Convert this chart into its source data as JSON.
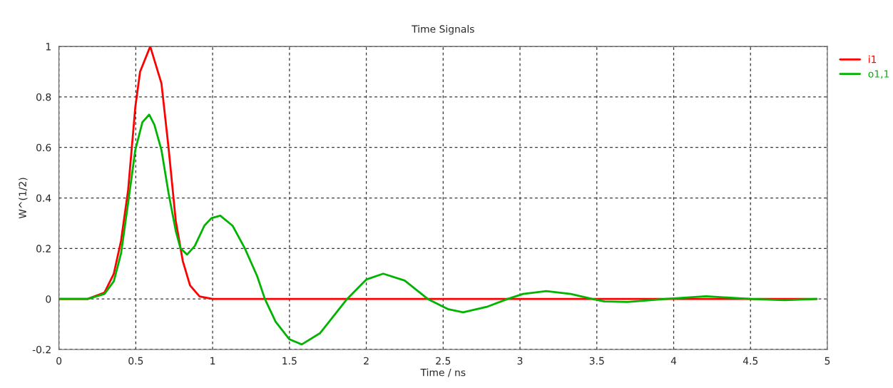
{
  "chart_data": {
    "type": "line",
    "title": "Time Signals",
    "xlabel": "Time / ns",
    "ylabel": "W^(1/2)",
    "xlim": [
      0,
      5
    ],
    "ylim": [
      -0.2,
      1
    ],
    "xticks": [
      0,
      0.5,
      1,
      1.5,
      2,
      2.5,
      3,
      3.5,
      4,
      4.5,
      5
    ],
    "yticks": [
      -0.2,
      0,
      0.2,
      0.4,
      0.6,
      0.8,
      1
    ],
    "grid": true,
    "legend": "top right",
    "line_style": "solid",
    "marker": "none",
    "series": [
      {
        "name": "i1",
        "color": "#ff0000",
        "x": [
          0,
          0.187,
          0.296,
          0.357,
          0.404,
          0.45,
          0.497,
          0.528,
          0.594,
          0.667,
          0.713,
          0.76,
          0.806,
          0.853,
          0.915,
          1.0,
          4.93
        ],
        "values": [
          0,
          0,
          0.025,
          0.1,
          0.23,
          0.43,
          0.76,
          0.9,
          1.0,
          0.854,
          0.6,
          0.31,
          0.15,
          0.054,
          0.01,
          0,
          0
        ]
      },
      {
        "name": "o1,1",
        "color": "#00b400",
        "x": [
          0,
          0.187,
          0.296,
          0.357,
          0.404,
          0.45,
          0.497,
          0.543,
          0.587,
          0.621,
          0.667,
          0.713,
          0.76,
          0.791,
          0.834,
          0.884,
          0.946,
          0.992,
          1.05,
          1.13,
          1.21,
          1.29,
          1.34,
          1.41,
          1.5,
          1.58,
          1.7,
          1.875,
          2.0,
          2.11,
          2.25,
          2.4,
          2.53,
          2.63,
          2.79,
          2.92,
          3.02,
          3.17,
          3.33,
          3.47,
          3.55,
          3.7,
          3.95,
          4.21,
          4.5,
          4.72,
          4.93
        ],
        "values": [
          0,
          0,
          0.02,
          0.07,
          0.18,
          0.38,
          0.59,
          0.7,
          0.73,
          0.69,
          0.59,
          0.42,
          0.27,
          0.2,
          0.176,
          0.21,
          0.29,
          0.32,
          0.33,
          0.29,
          0.2,
          0.09,
          0,
          -0.09,
          -0.16,
          -0.18,
          -0.135,
          0,
          0.077,
          0.1,
          0.073,
          0,
          -0.04,
          -0.053,
          -0.03,
          0,
          0.02,
          0.031,
          0.02,
          0,
          -0.01,
          -0.012,
          0,
          0.011,
          0,
          -0.005,
          0
        ]
      }
    ]
  }
}
